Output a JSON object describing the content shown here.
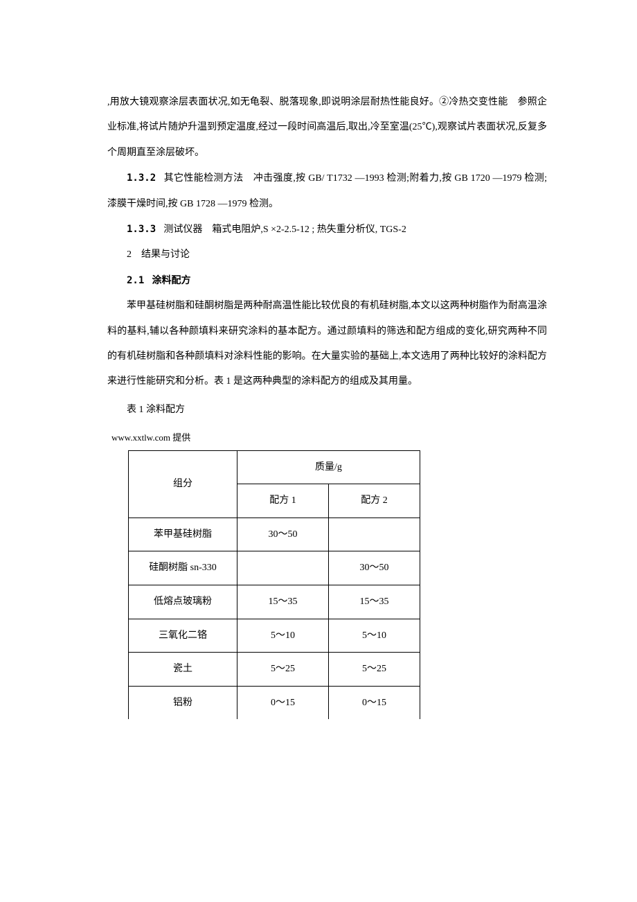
{
  "p1": ",用放大镜观察涂层表面状况,如无龟裂、脱落现象,即说明涂层耐热性能良好。②冷热交变性能　参照企业标准,将试片随炉升温到预定温度,经过一段时间高温后,取出,冷至室温(25℃),观察试片表面状况,反复多个周期直至涂层破坏。",
  "p2_label": "1.3.2",
  "p2": "其它性能检测方法　冲击强度,按 GB/ T1732 —1993 检测;附着力,按 GB 1720 —1979 检测;漆膜干燥时间,按 GB 1728 —1979 检测。",
  "p3_label": "1.3.3",
  "p3": "测试仪器　箱式电阻炉,S ×2-2.5-12 ; 热失重分析仪, TGS-2",
  "p4": "2　结果与讨论",
  "p5_label": "2.1",
  "p5": "涂料配方",
  "p6": "苯甲基硅树脂和硅酮树脂是两种耐高温性能比较优良的有机硅树脂,本文以这两种树脂作为耐高温涂料的基料,辅以各种颜填料来研究涂料的基本配方。通过颜填料的筛选和配方组成的变化,研究两种不同的有机硅树脂和各种颜填料对涂料性能的影响。在大量实验的基础上,本文选用了两种比较好的涂料配方来进行性能研究和分析。表 1 是这两种典型的涂料配方的组成及其用量。",
  "table_caption": "表 1 涂料配方",
  "provider": "www.xxtlw.com 提供",
  "table": {
    "headers": {
      "component": "组分",
      "mass": "质量/g",
      "f1": "配方 1",
      "f2": "配方 2"
    },
    "rows": [
      {
        "c": "苯甲基硅树脂",
        "v1": "30～50",
        "v2": ""
      },
      {
        "c": "硅酮树脂 sn-330",
        "v1": "",
        "v2": "30～50"
      },
      {
        "c": "低熔点玻璃粉",
        "v1": "15～35",
        "v2": "15～35"
      },
      {
        "c": "三氧化二铬",
        "v1": "5～10",
        "v2": "5～10"
      },
      {
        "c": "瓷土",
        "v1": "5～25",
        "v2": "5～25"
      },
      {
        "c": "铝粉",
        "v1": "0～15",
        "v2": "0～15"
      }
    ]
  }
}
